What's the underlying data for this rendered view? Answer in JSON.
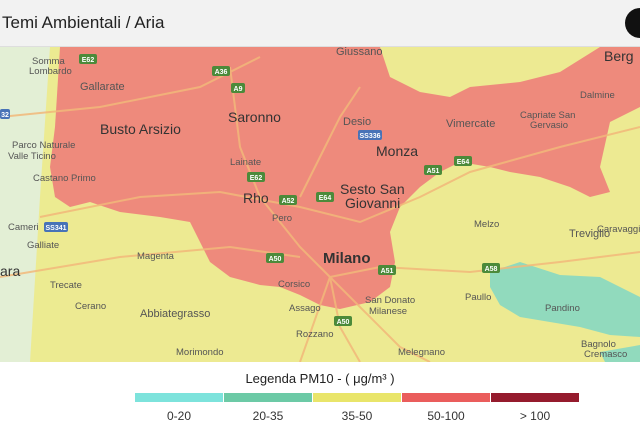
{
  "header": {
    "title": "Temi Ambientali / Aria"
  },
  "map": {
    "places": [
      {
        "id": "giussano",
        "label": "Giussano"
      },
      {
        "id": "somma",
        "label": "Somma"
      },
      {
        "id": "lombardo",
        "label": "Lombardo"
      },
      {
        "id": "gallarate",
        "label": "Gallarate"
      },
      {
        "id": "busto",
        "label": "Busto Arsizio"
      },
      {
        "id": "parco1",
        "label": "Parco Naturale"
      },
      {
        "id": "parco2",
        "label": "Valle Ticino"
      },
      {
        "id": "castano",
        "label": "Castano Primo"
      },
      {
        "id": "cameri",
        "label": "Cameri"
      },
      {
        "id": "galliate",
        "label": "Galliate"
      },
      {
        "id": "novara",
        "label": "ara"
      },
      {
        "id": "trecate",
        "label": "Trecate"
      },
      {
        "id": "cerano",
        "label": "Cerano"
      },
      {
        "id": "saronno",
        "label": "Saronno"
      },
      {
        "id": "lainate",
        "label": "Lainate"
      },
      {
        "id": "rho",
        "label": "Rho"
      },
      {
        "id": "pero",
        "label": "Pero"
      },
      {
        "id": "desio",
        "label": "Desio"
      },
      {
        "id": "monza",
        "label": "Monza"
      },
      {
        "id": "sesto1",
        "label": "Sesto San"
      },
      {
        "id": "sesto2",
        "label": "Giovanni"
      },
      {
        "id": "milano",
        "label": "Milano"
      },
      {
        "id": "corsico",
        "label": "Corsico"
      },
      {
        "id": "assago",
        "label": "Assago"
      },
      {
        "id": "rozzano",
        "label": "Rozzano"
      },
      {
        "id": "sandonato1",
        "label": "San Donato"
      },
      {
        "id": "sandonato2",
        "label": "Milanese"
      },
      {
        "id": "melegnano",
        "label": "Melegnano"
      },
      {
        "id": "magenta",
        "label": "Magenta"
      },
      {
        "id": "abbiategrasso",
        "label": "Abbiategrasso"
      },
      {
        "id": "morimondo",
        "label": "Morimondo"
      },
      {
        "id": "vimercate",
        "label": "Vimercate"
      },
      {
        "id": "capriate1",
        "label": "Capriate San"
      },
      {
        "id": "capriate2",
        "label": "Gervasio"
      },
      {
        "id": "dalmine",
        "label": "Dalmine"
      },
      {
        "id": "bergamo",
        "label": "Berg"
      },
      {
        "id": "treviglio",
        "label": "Treviglio"
      },
      {
        "id": "caravaggio",
        "label": "Caravaggi"
      },
      {
        "id": "melzo",
        "label": "Melzo"
      },
      {
        "id": "paullo",
        "label": "Paullo"
      },
      {
        "id": "pandino",
        "label": "Pandino"
      },
      {
        "id": "bagnolo",
        "label": "Bagnolo"
      },
      {
        "id": "cremasco",
        "label": "Cremasco"
      }
    ],
    "roads": [
      {
        "id": "e62a",
        "label": "E62"
      },
      {
        "id": "a36",
        "label": "A36"
      },
      {
        "id": "a9",
        "label": "A9"
      },
      {
        "id": "ss336",
        "label": "SS336"
      },
      {
        "id": "e62b",
        "label": "E62"
      },
      {
        "id": "a52",
        "label": "A52"
      },
      {
        "id": "e64",
        "label": "E64"
      },
      {
        "id": "a51a",
        "label": "A51"
      },
      {
        "id": "e64b",
        "label": "E64"
      },
      {
        "id": "a50",
        "label": "A50"
      },
      {
        "id": "a51b",
        "label": "A51"
      },
      {
        "id": "a50b",
        "label": "A50"
      },
      {
        "id": "a58",
        "label": "A58"
      },
      {
        "id": "ss341",
        "label": "SS341"
      },
      {
        "id": "r32",
        "label": "32"
      }
    ]
  },
  "legend": {
    "title": "Legenda PM10 - ( μg/m³ )",
    "items": [
      {
        "label": "0-20",
        "color": "#7de3dc"
      },
      {
        "label": "20-35",
        "color": "#6ccaa6"
      },
      {
        "label": "35-50",
        "color": "#e9e56a"
      },
      {
        "label": "50-100",
        "color": "#ea5d5c"
      },
      {
        "label": "> 100",
        "color": "#951b2d"
      }
    ]
  }
}
